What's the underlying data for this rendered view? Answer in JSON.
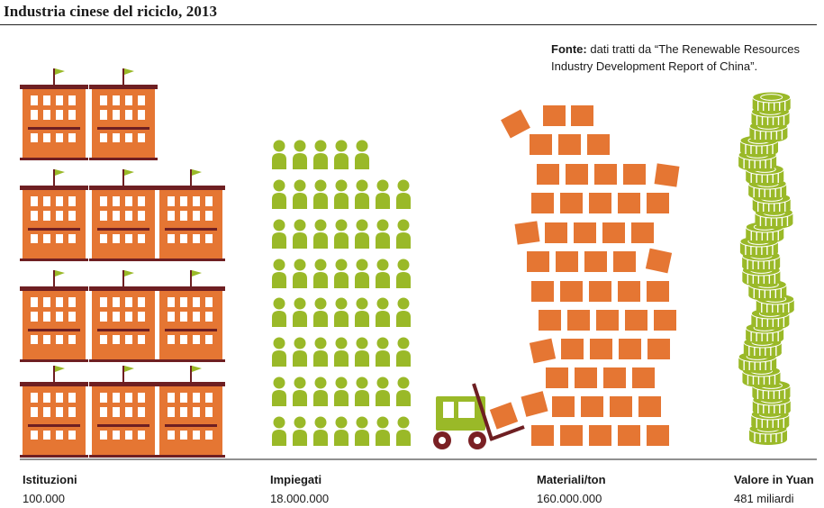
{
  "title": "Industria cinese del riciclo, 2013",
  "source": {
    "prefix": "Fonte:",
    "text": "dati tratti da “The Renewable Resources Industry Development Report of China”."
  },
  "colors": {
    "orange": "#e57633",
    "green": "#9ab928",
    "dark_red": "#6e1f22",
    "window": "#ffffff",
    "wheel": "#7a2024"
  },
  "icons": {
    "institutions": "building-icon",
    "employees": "person-icon",
    "materials": "brick-icon",
    "value": "coin-stack-icon",
    "forklift": "forklift-icon"
  },
  "metrics": [
    {
      "label": "Istituzioni",
      "value": "100.000"
    },
    {
      "label": "Impiegati",
      "value": "18.000.000"
    },
    {
      "label": "Materiali/ton",
      "value": "160.000.000"
    },
    {
      "label": "Valore in Yuan",
      "value": "481 miliardi"
    }
  ]
}
